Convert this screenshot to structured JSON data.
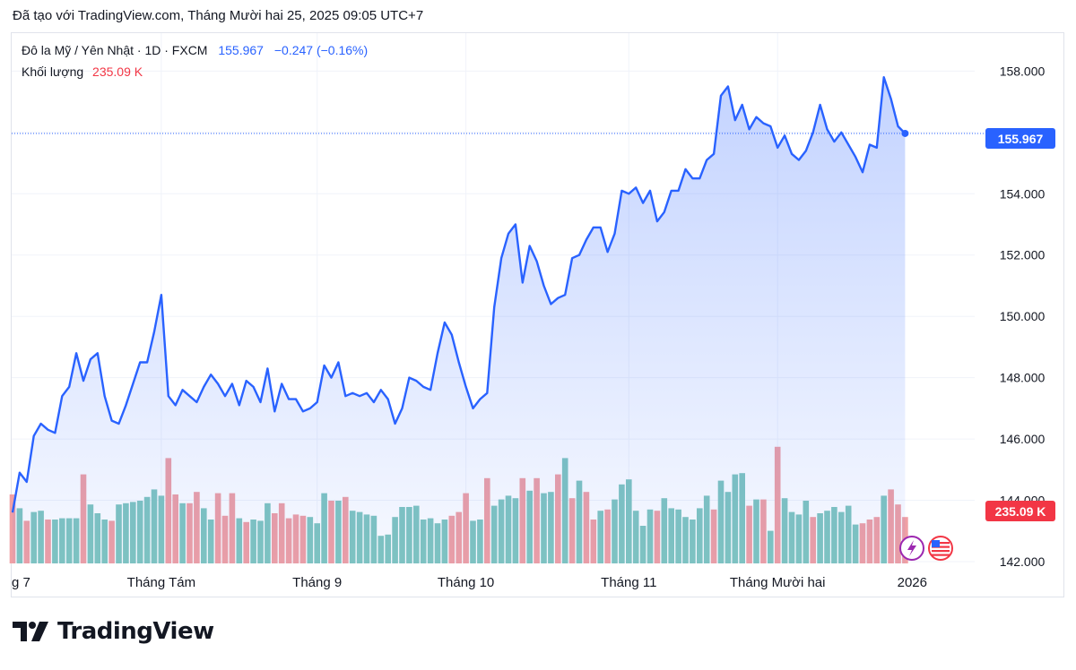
{
  "header": {
    "line": "Đã tạo với TradingView.com, Tháng Mười hai 25, 2025 09:05 UTC+7"
  },
  "legend": {
    "symbol": "Đô la Mỹ / Yên Nhật · 1D · FXCM",
    "last": "155.967",
    "change": "−0.247 (−0.16%)",
    "volume_label": "Khối lượng",
    "volume_value": "235.09 K"
  },
  "footer": {
    "brand": "TradingView"
  },
  "colors": {
    "line": "#2962ff",
    "area_top": "rgba(41,98,255,0.28)",
    "area_bottom": "rgba(41,98,255,0.04)",
    "vol_up": "#81c6bf",
    "vol_down": "#f0a0a4",
    "price_badge": "#2962ff",
    "volume_badge": "#f23645",
    "grid": "#f0f3fa"
  },
  "chart_data": {
    "type": "line",
    "title": "Đô la Mỹ / Yên Nhật · 1D · FXCM",
    "ylim": [
      142,
      158.8
    ],
    "y_ticks": [
      "158.000",
      "156.000",
      "154.000",
      "152.000",
      "150.000",
      "148.000",
      "146.000",
      "144.000",
      "142.000"
    ],
    "y_tick_values": [
      158,
      156,
      154,
      152,
      150,
      148,
      146,
      144,
      142
    ],
    "x_ticks": [
      {
        "label": "g 7",
        "index": 0
      },
      {
        "label": "Tháng Tám",
        "index": 21
      },
      {
        "label": "Tháng 9",
        "index": 43
      },
      {
        "label": "Tháng 10",
        "index": 64
      },
      {
        "label": "Tháng 11",
        "index": 87
      },
      {
        "label": "Tháng Mười hai",
        "index": 108
      },
      {
        "label": "2026",
        "index": 127
      }
    ],
    "last_price": 155.967,
    "last_volume": "235.09 K",
    "series": [
      {
        "name": "Đô la Mỹ / Yên Nhật",
        "values": [
          143.6,
          144.9,
          144.6,
          146.1,
          146.5,
          146.3,
          146.2,
          147.4,
          147.7,
          148.8,
          147.9,
          148.6,
          148.8,
          147.4,
          146.6,
          146.5,
          147.1,
          147.8,
          148.5,
          148.5,
          149.5,
          150.7,
          147.4,
          147.1,
          147.6,
          147.4,
          147.2,
          147.7,
          148.1,
          147.8,
          147.4,
          147.8,
          147.1,
          147.9,
          147.7,
          147.2,
          148.3,
          146.9,
          147.8,
          147.3,
          147.3,
          146.9,
          147.0,
          147.2,
          148.4,
          148.0,
          148.5,
          147.4,
          147.5,
          147.4,
          147.5,
          147.2,
          147.6,
          147.3,
          146.5,
          147.0,
          148.0,
          147.9,
          147.7,
          147.6,
          148.8,
          149.8,
          149.4,
          148.5,
          147.7,
          147.0,
          147.3,
          147.5,
          150.3,
          151.9,
          152.7,
          153.0,
          151.1,
          152.3,
          151.8,
          151.0,
          150.4,
          150.6,
          150.7,
          151.9,
          152.0,
          152.5,
          152.9,
          152.9,
          152.1,
          152.7,
          154.1,
          154.0,
          154.2,
          153.7,
          154.1,
          153.1,
          153.4,
          154.1,
          154.1,
          154.8,
          154.5,
          154.5,
          155.1,
          155.3,
          157.2,
          157.5,
          156.4,
          156.9,
          156.1,
          156.5,
          156.3,
          156.2,
          155.5,
          155.9,
          155.3,
          155.1,
          155.4,
          156.0,
          156.9,
          156.1,
          155.7,
          156.0,
          155.6,
          155.2,
          154.7,
          155.6,
          155.5,
          157.8,
          157.1,
          156.2,
          155.967
        ]
      },
      {
        "name": "Khối lượng",
        "values": [
          0.55,
          0.44,
          0.34,
          0.41,
          0.42,
          0.35,
          0.35,
          0.36,
          0.36,
          0.36,
          0.71,
          0.47,
          0.4,
          0.35,
          0.34,
          0.47,
          0.48,
          0.49,
          0.5,
          0.53,
          0.59,
          0.54,
          0.84,
          0.55,
          0.48,
          0.48,
          0.57,
          0.44,
          0.35,
          0.56,
          0.38,
          0.56,
          0.36,
          0.33,
          0.35,
          0.34,
          0.48,
          0.4,
          0.48,
          0.36,
          0.39,
          0.38,
          0.37,
          0.32,
          0.56,
          0.5,
          0.5,
          0.53,
          0.42,
          0.41,
          0.39,
          0.38,
          0.22,
          0.23,
          0.37,
          0.45,
          0.45,
          0.46,
          0.35,
          0.36,
          0.32,
          0.35,
          0.38,
          0.41,
          0.56,
          0.34,
          0.35,
          0.68,
          0.46,
          0.51,
          0.54,
          0.52,
          0.68,
          0.58,
          0.68,
          0.56,
          0.57,
          0.71,
          0.84,
          0.52,
          0.66,
          0.57,
          0.35,
          0.42,
          0.43,
          0.51,
          0.63,
          0.67,
          0.42,
          0.3,
          0.43,
          0.42,
          0.52,
          0.44,
          0.43,
          0.37,
          0.35,
          0.44,
          0.54,
          0.43,
          0.66,
          0.57,
          0.71,
          0.72,
          0.46,
          0.51,
          0.51,
          0.26,
          0.93,
          0.52,
          0.41,
          0.39,
          0.5,
          0.37,
          0.4,
          0.42,
          0.45,
          0.41,
          0.46,
          0.31,
          0.32,
          0.35,
          0.37,
          0.54,
          0.59,
          0.47,
          0.37
        ]
      }
    ],
    "volume_direction": [
      "d",
      "u",
      "d",
      "u",
      "u",
      "d",
      "u",
      "u",
      "u",
      "u",
      "d",
      "u",
      "u",
      "u",
      "d",
      "u",
      "u",
      "u",
      "u",
      "u",
      "u",
      "u",
      "d",
      "d",
      "u",
      "d",
      "d",
      "u",
      "u",
      "d",
      "d",
      "d",
      "u",
      "d",
      "u",
      "u",
      "u",
      "d",
      "d",
      "d",
      "d",
      "d",
      "u",
      "u",
      "u",
      "d",
      "u",
      "d",
      "u",
      "u",
      "u",
      "u",
      "u",
      "u",
      "u",
      "u",
      "u",
      "u",
      "u",
      "u",
      "u",
      "u",
      "d",
      "d",
      "d",
      "u",
      "u",
      "d",
      "u",
      "u",
      "u",
      "u",
      "d",
      "u",
      "d",
      "u",
      "u",
      "d",
      "u",
      "d",
      "u",
      "d",
      "d",
      "u",
      "d",
      "u",
      "u",
      "u",
      "u",
      "u",
      "u",
      "d",
      "u",
      "u",
      "u",
      "u",
      "u",
      "u",
      "u",
      "d",
      "u",
      "u",
      "u",
      "u",
      "d",
      "u",
      "d",
      "u",
      "d",
      "u",
      "u",
      "u",
      "u",
      "d",
      "u",
      "u",
      "u",
      "u",
      "u",
      "u",
      "d",
      "d",
      "d",
      "u",
      "d",
      "d",
      "d"
    ]
  }
}
